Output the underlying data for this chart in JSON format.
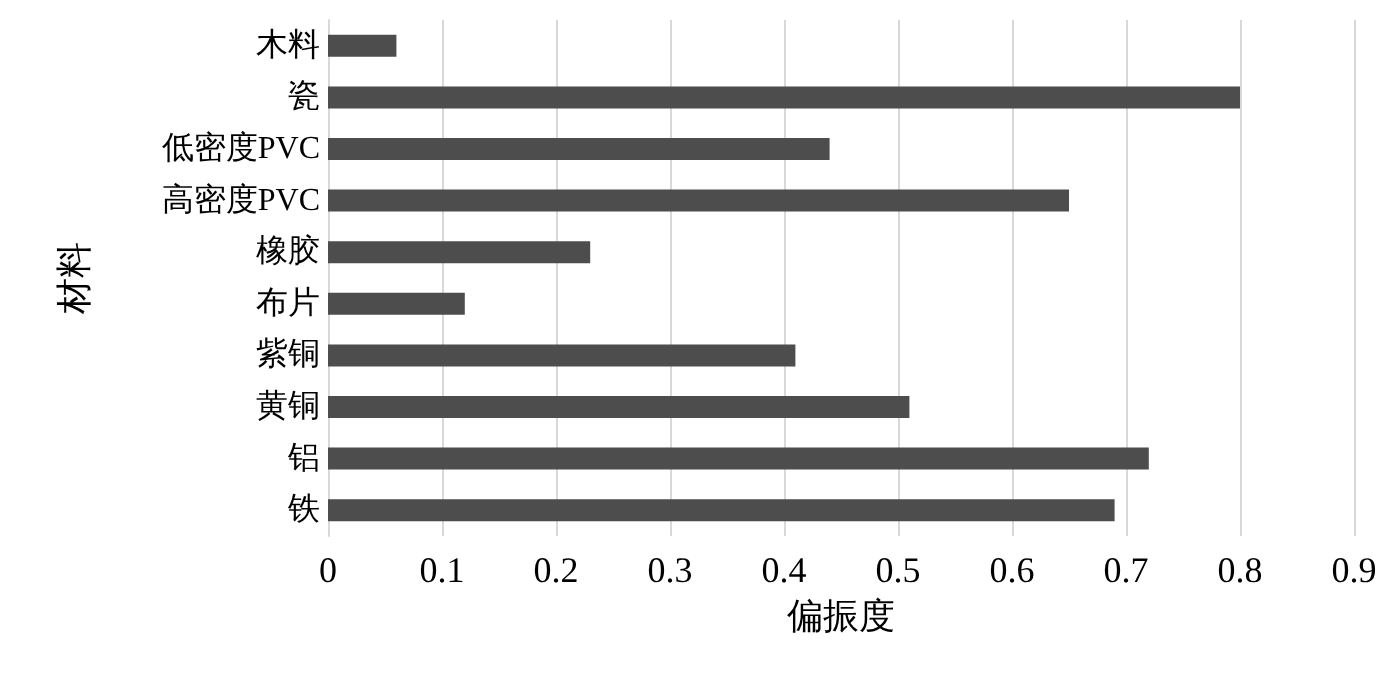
{
  "chart_data": {
    "type": "bar",
    "orientation": "horizontal",
    "xlabel": "偏振度",
    "ylabel": "材料",
    "categories": [
      "木料",
      "瓷",
      "低密度PVC",
      "高密度PVC",
      "橡胶",
      "布片",
      "紫铜",
      "黄铜",
      "铝",
      "铁"
    ],
    "values": [
      0.06,
      0.8,
      0.44,
      0.65,
      0.23,
      0.12,
      0.41,
      0.51,
      0.72,
      0.69
    ],
    "color": "#4d4d4d",
    "xlim": [
      0,
      0.9
    ],
    "xticks": [
      0,
      0.1,
      0.2,
      0.3,
      0.4,
      0.5,
      0.6,
      0.7,
      0.8,
      0.9
    ],
    "grid": "x"
  }
}
